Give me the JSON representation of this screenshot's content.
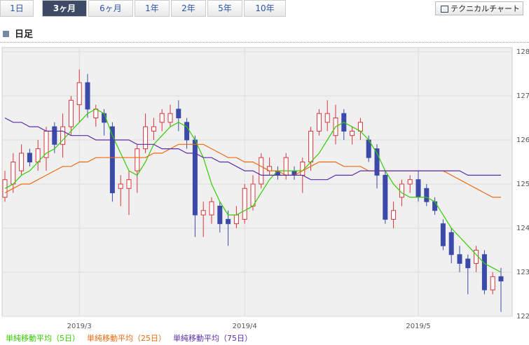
{
  "tabs": [
    "1日",
    "3ヶ月",
    "6ヶ月",
    "1年",
    "2年",
    "5年",
    "10年"
  ],
  "button": "テクニカルチャート",
  "heading": "日足",
  "chart_data": {
    "type": "candlestick",
    "categories": [
      null,
      null,
      null,
      null,
      null,
      null,
      null,
      null,
      null,
      "2019/3",
      null,
      null,
      null,
      null,
      null,
      null,
      null,
      null,
      null,
      null,
      null,
      null,
      null,
      null,
      null,
      null,
      null,
      null,
      null,
      "2019/4",
      null,
      null,
      null,
      null,
      null,
      null,
      null,
      null,
      null,
      null,
      null,
      null,
      null,
      null,
      null,
      null,
      null,
      null,
      null,
      null,
      "2019/5",
      null,
      null,
      null,
      null,
      null,
      null,
      null,
      null,
      null,
      null
    ],
    "open": [
      124.7,
      125.0,
      125.3,
      125.7,
      125.5,
      125.6,
      126.3,
      125.9,
      126.3,
      126.8,
      127.3,
      126.5,
      126.6,
      126.3,
      124.9,
      124.9,
      125.3,
      125.8,
      126.2,
      126.4,
      126.4,
      126.7,
      126.4,
      126.0,
      124.3,
      124.3,
      124.5,
      124.2,
      124.1,
      124.2,
      124.5,
      125.0,
      125.3,
      125.3,
      125.2,
      125.3,
      125.2,
      125.5,
      126.2,
      126.4,
      126.1,
      126.6,
      126.1,
      126.2,
      126.0,
      125.8,
      125.2,
      124.2,
      124.7,
      125.0,
      125.1,
      124.9,
      124.6,
      124.1,
      123.9,
      123.4,
      123.3,
      123.2,
      123.4,
      122.6,
      122.9
    ],
    "high": [
      125.3,
      125.7,
      125.9,
      125.8,
      126.0,
      126.3,
      126.4,
      126.6,
      127.0,
      127.6,
      127.5,
      126.8,
      126.7,
      126.4,
      125.2,
      125.3,
      125.9,
      126.6,
      126.5,
      126.7,
      126.8,
      126.9,
      126.5,
      126.1,
      124.6,
      124.7,
      124.6,
      124.4,
      124.5,
      125.0,
      125.2,
      125.7,
      125.6,
      125.4,
      125.7,
      125.4,
      125.6,
      126.3,
      126.7,
      126.9,
      126.8,
      126.7,
      126.3,
      126.5,
      126.1,
      125.9,
      125.3,
      124.6,
      125.1,
      125.2,
      125.3,
      125.0,
      124.7,
      124.2,
      124.0,
      123.6,
      123.4,
      123.6,
      123.5,
      123.0,
      123.1
    ],
    "low": [
      124.6,
      124.8,
      125.2,
      125.4,
      125.3,
      125.3,
      125.7,
      125.6,
      126.1,
      126.4,
      126.5,
      126.3,
      126.1,
      124.6,
      124.5,
      124.3,
      124.8,
      125.7,
      126.0,
      126.2,
      126.3,
      126.2,
      125.8,
      123.8,
      123.8,
      124.1,
      123.9,
      123.6,
      124.0,
      124.1,
      124.4,
      124.9,
      125.2,
      125.1,
      125.1,
      125.1,
      124.8,
      125.3,
      126.1,
      126.2,
      125.9,
      126.0,
      125.9,
      126.0,
      125.5,
      124.9,
      124.1,
      124.0,
      124.5,
      124.8,
      124.6,
      124.5,
      124.3,
      123.5,
      123.2,
      123.0,
      122.5,
      123.0,
      122.5,
      122.5,
      122.1
    ],
    "close": [
      125.1,
      125.5,
      125.7,
      125.5,
      125.8,
      126.2,
      125.9,
      126.3,
      126.9,
      127.3,
      126.7,
      126.7,
      126.4,
      124.8,
      125.0,
      125.1,
      125.8,
      126.3,
      126.3,
      126.6,
      126.6,
      126.5,
      126.0,
      124.3,
      124.4,
      124.6,
      124.1,
      124.1,
      124.3,
      124.9,
      125.0,
      125.6,
      125.4,
      125.2,
      125.6,
      125.2,
      125.5,
      126.2,
      126.6,
      126.6,
      126.5,
      126.2,
      126.2,
      126.4,
      125.6,
      125.2,
      124.2,
      124.4,
      125.0,
      125.1,
      124.7,
      124.6,
      124.4,
      123.6,
      123.4,
      123.2,
      123.1,
      123.5,
      122.6,
      122.9,
      122.8
    ],
    "up_color": "#d9343a",
    "down_color": "#3b4aa8",
    "series": [
      {
        "name": "単純移動平均（5日）",
        "color": "#33cc00",
        "values": [
          124.9,
          125.0,
          125.2,
          125.3,
          125.5,
          125.7,
          125.8,
          126.0,
          126.2,
          126.4,
          126.6,
          126.7,
          126.6,
          126.1,
          125.7,
          125.3,
          125.2,
          125.5,
          125.9,
          126.1,
          126.3,
          126.4,
          126.3,
          126.0,
          125.6,
          125.0,
          124.6,
          124.3,
          124.3,
          124.4,
          124.5,
          124.8,
          125.1,
          125.3,
          125.3,
          125.3,
          125.3,
          125.5,
          125.7,
          126.0,
          126.3,
          126.4,
          126.3,
          126.2,
          126.0,
          125.7,
          125.3,
          125.0,
          124.8,
          124.7,
          124.7,
          124.7,
          124.6,
          124.3,
          124.0,
          123.8,
          123.6,
          123.4,
          123.2,
          123.1,
          123.0
        ]
      },
      {
        "name": "単純移動平均（25日）",
        "color": "#ee6a10",
        "values": [
          124.8,
          124.9,
          125.0,
          125.0,
          125.1,
          125.2,
          125.3,
          125.4,
          125.4,
          125.5,
          125.5,
          125.6,
          125.6,
          125.6,
          125.6,
          125.6,
          125.6,
          125.6,
          125.7,
          125.7,
          125.8,
          125.9,
          125.9,
          125.9,
          125.9,
          125.8,
          125.7,
          125.6,
          125.6,
          125.5,
          125.5,
          125.4,
          125.3,
          125.3,
          125.2,
          125.2,
          125.3,
          125.4,
          125.5,
          125.5,
          125.5,
          125.4,
          125.4,
          125.4,
          125.3,
          125.3,
          125.3,
          125.3,
          125.3,
          125.3,
          125.3,
          125.3,
          125.3,
          125.3,
          125.2,
          125.1,
          125.0,
          124.9,
          124.8,
          124.7,
          124.7
        ]
      },
      {
        "name": "単純移動平均（75日）",
        "color": "#5a2ca8",
        "values": [
          126.5,
          126.4,
          126.4,
          126.3,
          126.3,
          126.2,
          126.2,
          126.2,
          126.1,
          126.1,
          126.1,
          126.0,
          126.0,
          126.0,
          126.0,
          126.0,
          125.9,
          125.9,
          125.9,
          125.8,
          125.8,
          125.8,
          125.7,
          125.7,
          125.6,
          125.6,
          125.5,
          125.5,
          125.4,
          125.3,
          125.3,
          125.2,
          125.2,
          125.2,
          125.2,
          125.2,
          125.2,
          125.1,
          125.1,
          125.1,
          125.2,
          125.2,
          125.2,
          125.3,
          125.3,
          125.3,
          125.3,
          125.3,
          125.3,
          125.3,
          125.3,
          125.3,
          125.3,
          125.3,
          125.3,
          125.3,
          125.2,
          125.2,
          125.2,
          125.2,
          125.2
        ]
      }
    ],
    "ylim": [
      122,
      128
    ],
    "yticks": [
      122,
      123,
      124,
      125,
      126,
      127,
      128
    ],
    "grid": true
  }
}
